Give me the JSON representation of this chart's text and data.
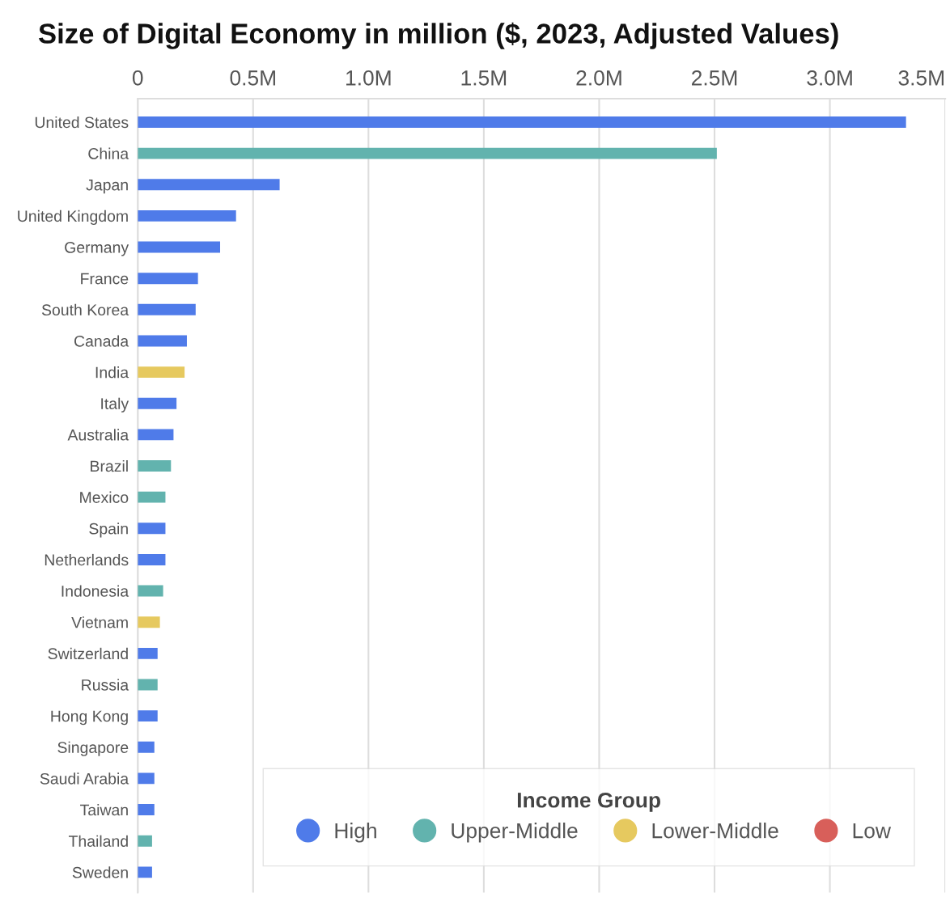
{
  "chart_data": {
    "type": "bar",
    "orientation": "horizontal",
    "title": "Size of Digital Economy in million ($, 2023, Adjusted Values)",
    "legend_title": "Income Group",
    "legend": "bottom right",
    "grid": "x",
    "categories": [
      "United States",
      "China",
      "Japan",
      "United Kingdom",
      "Germany",
      "France",
      "South Korea",
      "Canada",
      "India",
      "Italy",
      "Australia",
      "Brazil",
      "Mexico",
      "Spain",
      "Netherlands",
      "Indonesia",
      "Vietnam",
      "Switzerland",
      "Russia",
      "Hong Kong",
      "Singapore",
      "Saudi Arabia",
      "Taiwan",
      "Thailand",
      "Sweden"
    ],
    "xlim": [
      0,
      3500000
    ],
    "xticks": [
      0,
      {
        "value": 500000,
        "label": "0.5M"
      },
      {
        "value": 1000000,
        "label": "1.0M"
      },
      {
        "value": 1500000,
        "label": "1.5M"
      },
      {
        "value": 2000000,
        "label": "2.0M"
      },
      {
        "value": 2500000,
        "label": "2.5M"
      },
      {
        "value": 3000000,
        "label": "3.0M"
      },
      {
        "value": 3500000,
        "label": "3.5M"
      }
    ],
    "series": [
      {
        "name": "High",
        "color": "#4f7be9",
        "values": [
          3330000,
          null,
          615000,
          426000,
          357000,
          261000,
          251000,
          213000,
          null,
          168000,
          155000,
          null,
          null,
          120000,
          120000,
          null,
          null,
          86000,
          null,
          86000,
          72000,
          72000,
          72000,
          null,
          62000
        ]
      },
      {
        "name": "Upper-Middle",
        "color": "#62b3ae",
        "values": [
          null,
          2510000,
          null,
          null,
          null,
          null,
          null,
          null,
          null,
          null,
          null,
          144000,
          120000,
          null,
          null,
          110000,
          null,
          null,
          86000,
          null,
          null,
          null,
          null,
          62000,
          null
        ]
      },
      {
        "name": "Lower-Middle",
        "color": "#e6c95f",
        "values": [
          null,
          null,
          null,
          null,
          null,
          null,
          null,
          null,
          203000,
          null,
          null,
          null,
          null,
          null,
          null,
          null,
          96000,
          null,
          null,
          null,
          null,
          null,
          null,
          null,
          null
        ]
      },
      {
        "name": "Low",
        "color": "#d85f5a",
        "values": [
          null,
          null,
          null,
          null,
          null,
          null,
          null,
          null,
          null,
          null,
          null,
          null,
          null,
          null,
          null,
          null,
          null,
          null,
          null,
          null,
          null,
          null,
          null,
          null,
          null
        ]
      }
    ]
  }
}
